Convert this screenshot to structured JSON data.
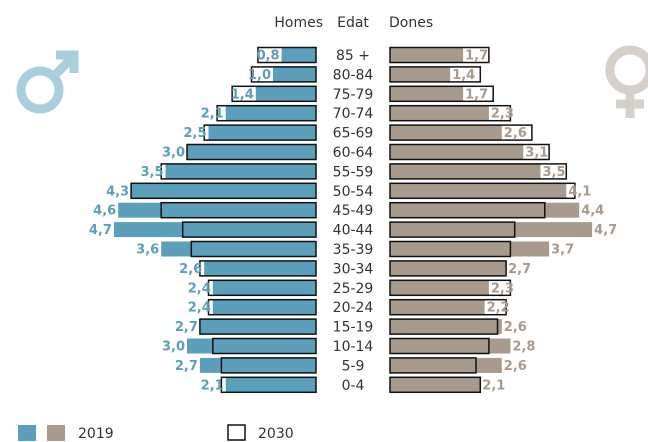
{
  "chart_data": {
    "type": "pyramid",
    "men_title": "Homes",
    "axis_title": "Edat",
    "women_title": "Dones",
    "categories": [
      "85 +",
      "80-84",
      "75-79",
      "70-74",
      "65-69",
      "60-64",
      "55-59",
      "50-54",
      "45-49",
      "40-44",
      "35-39",
      "30-34",
      "25-29",
      "20-24",
      "15-19",
      "10-14",
      "5-9",
      "0-4"
    ],
    "xlim": [
      0,
      5
    ],
    "legend": [
      "2019",
      "2030"
    ],
    "men": {
      "color": "#5b9fba",
      "values": [
        0.8,
        1.0,
        1.4,
        2.1,
        2.5,
        3.0,
        3.5,
        4.3,
        4.6,
        4.7,
        3.6,
        2.6,
        2.4,
        2.4,
        2.7,
        3.0,
        2.7,
        2.1
      ],
      "value_labels": [
        "0,8",
        "1,0",
        "1,4",
        "2,1",
        "2,5",
        "3,0",
        "3,5",
        "4,3",
        "4,6",
        "4,7",
        "3,6",
        "2,6",
        "2,4",
        "2,4",
        "2,7",
        "3,0",
        "2,7",
        "2,1"
      ],
      "values_2030": [
        1.35,
        1.5,
        1.95,
        2.3,
        2.6,
        3.0,
        3.6,
        4.3,
        3.6,
        3.1,
        2.9,
        2.7,
        2.5,
        2.5,
        2.7,
        2.4,
        2.2,
        2.2
      ]
    },
    "women": {
      "color": "#a89a8c",
      "values": [
        1.7,
        1.4,
        1.7,
        2.3,
        2.6,
        3.1,
        3.5,
        4.1,
        4.4,
        4.7,
        3.7,
        2.7,
        2.3,
        2.2,
        2.6,
        2.8,
        2.6,
        2.1
      ],
      "value_labels": [
        "1,7",
        "1,4",
        "1,7",
        "2,3",
        "2,6",
        "3,1",
        "3,5",
        "4,1",
        "4,4",
        "4,7",
        "3,7",
        "2,7",
        "2,3",
        "2,2",
        "2,6",
        "2,8",
        "2,6",
        "2,1"
      ],
      "values_2030": [
        2.3,
        2.1,
        2.4,
        2.8,
        3.3,
        3.7,
        4.1,
        4.3,
        3.6,
        2.9,
        2.8,
        2.7,
        2.8,
        2.7,
        2.5,
        2.3,
        2.0,
        2.1
      ]
    }
  }
}
